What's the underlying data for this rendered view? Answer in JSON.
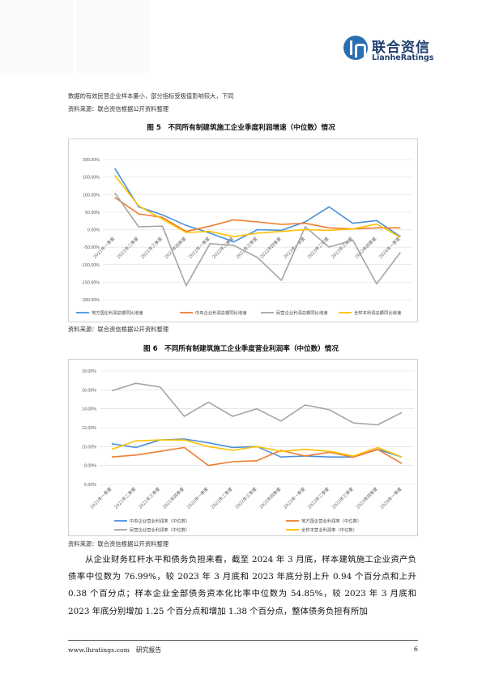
{
  "header": {
    "logo_cn": "联合资信",
    "logo_en": "LianheRatings"
  },
  "notes": {
    "sample_note": "数据的有效民营企业样本量小，部分指标受极值影响较大，下同",
    "source_top": "资料来源：联合资信根据公开资料整理",
    "source_fig5": "资料来源：联合资信根据公开资料整理",
    "source_fig6": "资料来源：联合资信根据公开资料整理"
  },
  "fig5": {
    "title": "图 5　不同所有制建筑施工企业季度利润增速（中位数）情况"
  },
  "fig6": {
    "title": "图 6　不同所有制建筑施工企业季度营业利润率（中位数）情况"
  },
  "chart_data": [
    {
      "type": "line",
      "title": "",
      "categories": [
        "2021年一季度",
        "2021年二季度",
        "2021年三季度",
        "2021年四季度",
        "2022年一季度",
        "2022年二季度",
        "2022年三季度",
        "2022年四季度",
        "2023年一季度",
        "2023年二季度",
        "2023年三季度",
        "2023年四季度",
        "2024年一季度"
      ],
      "ylim": [
        -200,
        200
      ],
      "yticks": [
        "200.00%",
        "150.00%",
        "100.00%",
        "50.00%",
        "0.00%",
        "-50.00%",
        "-100.00%",
        "-150.00%",
        "-200.00%"
      ],
      "grid": true,
      "legend": "bottom",
      "series": [
        {
          "name": "地方国企利润总额同比增速",
          "color": "#4a90d9",
          "values": [
            175,
            65,
            42,
            12,
            -10,
            -35,
            0,
            -2,
            22,
            65,
            18,
            26,
            -20
          ]
        },
        {
          "name": "中央企业利润总额同比增速",
          "color": "#ed7d31",
          "values": [
            92,
            45,
            35,
            -5,
            10,
            28,
            22,
            15,
            18,
            5,
            2,
            5,
            5
          ]
        },
        {
          "name": "民营企业利润总额同比增速",
          "color": "#a5a5a5",
          "values": [
            105,
            8,
            10,
            -160,
            -40,
            -45,
            -80,
            -145,
            8,
            -50,
            -30,
            -155,
            -65
          ]
        },
        {
          "name": "全样本利润总额同比增速",
          "color": "#ffc000",
          "values": [
            155,
            68,
            30,
            -8,
            -5,
            -20,
            -10,
            -5,
            0,
            -2,
            2,
            16,
            -22
          ]
        }
      ]
    },
    {
      "type": "line",
      "title": "",
      "categories": [
        "2021年一季度",
        "2021年二季度",
        "2021年三季度",
        "2021年四季度",
        "2022年一季度",
        "2022年二季度",
        "2022年三季度",
        "2022年四季度",
        "2023年一季度",
        "2023年二季度",
        "2023年三季度",
        "2023年四季度",
        "2024年一季度"
      ],
      "ylim": [
        6,
        18
      ],
      "yticks": [
        "18.00%",
        "16.00%",
        "14.00%",
        "12.00%",
        "10.00%",
        "8.00%",
        "6.00%"
      ],
      "grid": true,
      "legend": "bottom",
      "series": [
        {
          "name": "中央企业营业利润率（中位数）",
          "color": "#4a90d9",
          "values": [
            10.3,
            9.9,
            10.7,
            10.8,
            10.4,
            9.9,
            10.0,
            8.9,
            9.0,
            8.9,
            8.9,
            9.7,
            8.9
          ]
        },
        {
          "name": "地方国企营业利润率（中位数）",
          "color": "#ed7d31",
          "values": [
            8.9,
            9.1,
            9.5,
            9.9,
            8.0,
            8.4,
            8.5,
            9.6,
            9.0,
            9.4,
            8.9,
            9.7,
            8.2
          ]
        },
        {
          "name": "民营企业营业利润率（中位数）",
          "color": "#a5a5a5",
          "values": [
            15.9,
            16.7,
            16.3,
            13.2,
            14.7,
            13.2,
            14.0,
            12.7,
            14.4,
            13.9,
            12.5,
            12.3,
            13.6
          ]
        },
        {
          "name": "全样本营业利润率（中位数）",
          "color": "#ffc000",
          "values": [
            9.7,
            10.6,
            10.7,
            10.7,
            10.0,
            9.6,
            10.0,
            9.5,
            9.7,
            9.5,
            9.0,
            9.9,
            8.9
          ]
        }
      ]
    }
  ],
  "body": {
    "paragraph": "从企业财务杠杆水平和债务负担来看，截至 2024 年 3 月底，样本建筑施工企业资产负债率中位数为 76.99%，较 2023 年 3 月底和 2023 年底分别上升 0.94 个百分点和上升 0.38 个百分点；样本企业全部债务资本化比率中位数为 54.85%，较 2023 年 3 月底和 2023 年底分别增加 1.25 个百分点和增加 1.38 个百分点，整体债务负担有所加"
  },
  "footer": {
    "website": "www.lhratings.com　研究报告",
    "page_number": "6"
  }
}
